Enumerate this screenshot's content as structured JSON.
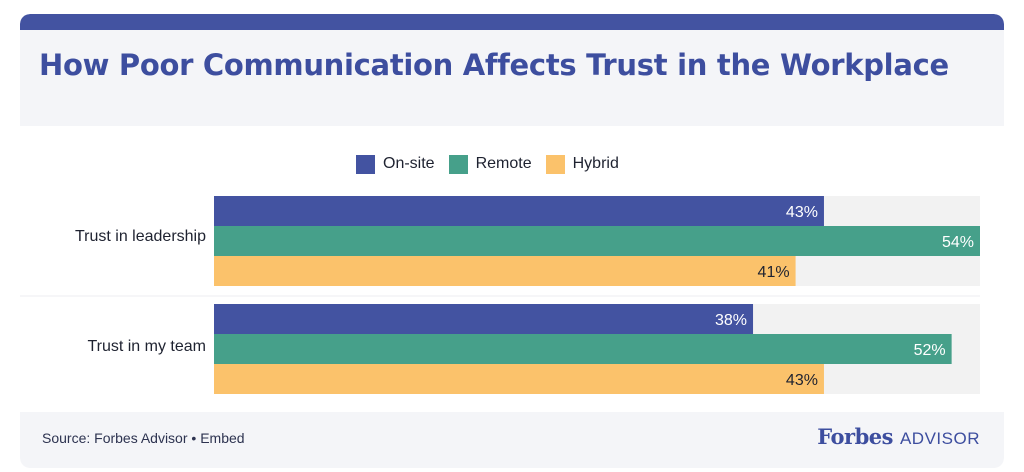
{
  "header": {
    "title": "How Poor Communication Affects Trust in the Workplace"
  },
  "legend": [
    {
      "label": "On-site",
      "color": "#4353a1"
    },
    {
      "label": "Remote",
      "color": "#46a08a"
    },
    {
      "label": "Hybrid",
      "color": "#fbc26b"
    }
  ],
  "chart_data": {
    "type": "bar",
    "orientation": "horizontal",
    "categories": [
      "Trust in leadership",
      "Trust in my team"
    ],
    "series": [
      {
        "name": "On-site",
        "values": [
          43,
          38
        ],
        "labels": [
          "43%",
          "38%"
        ],
        "color": "#4353a1"
      },
      {
        "name": "Remote",
        "values": [
          54,
          52
        ],
        "labels": [
          "54%",
          "52%"
        ],
        "color": "#46a08a"
      },
      {
        "name": "Hybrid",
        "values": [
          41,
          43
        ],
        "labels": [
          "41%",
          "43%"
        ],
        "color": "#fbc26b"
      }
    ],
    "xlim": [
      0,
      54
    ],
    "grid": false,
    "legend_position": "top-center",
    "track_color": "#f2f2f2"
  },
  "footer": {
    "source": "Source: Forbes Advisor • Embed",
    "brand_name": "Forbes",
    "brand_sub": "ADVISOR"
  }
}
